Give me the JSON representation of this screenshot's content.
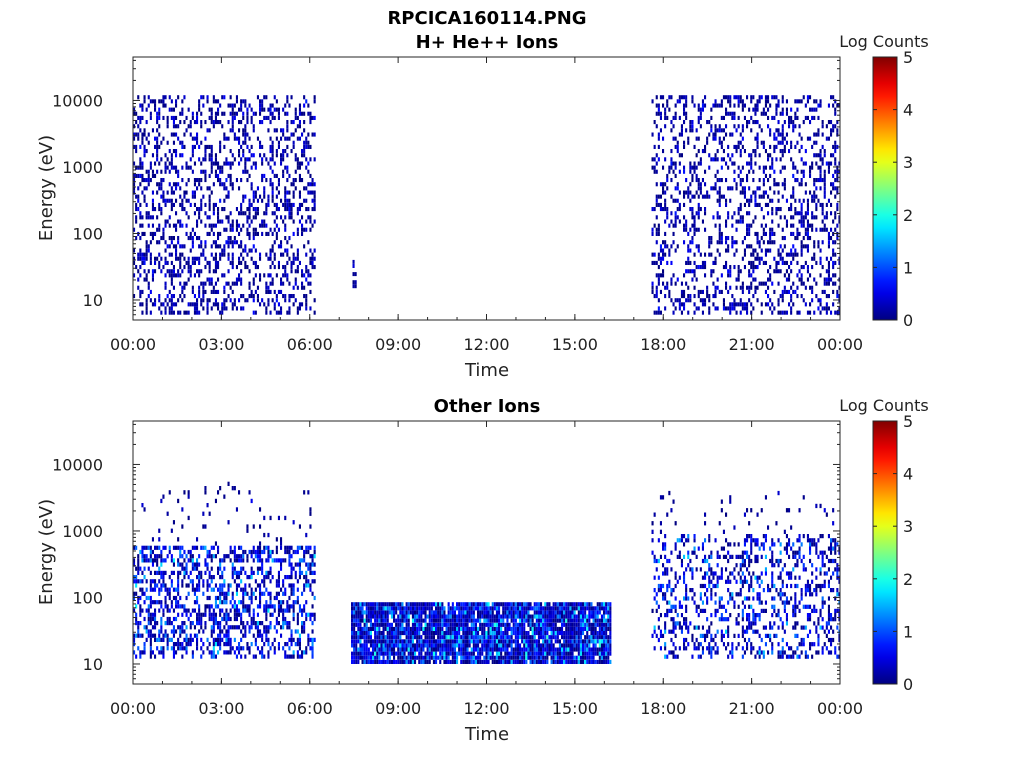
{
  "figure": {
    "title": "RPCICA160114.PNG"
  },
  "colors": {
    "low": "#00008f",
    "cyan": "#00dfff",
    "yellow": "#ffff00",
    "high": "#800000"
  },
  "chart_data": [
    {
      "type": "heatmap",
      "title": "H+ He++ Ions",
      "xlabel": "Time",
      "ylabel": "Energy (eV)",
      "x_ticks": [
        "00:00",
        "03:00",
        "06:00",
        "09:00",
        "12:00",
        "15:00",
        "18:00",
        "21:00",
        "00:00"
      ],
      "x_range_hours": [
        0,
        24
      ],
      "y_scale": "log",
      "y_range": [
        5,
        45000
      ],
      "y_ticks": [
        "10",
        "100",
        "1000",
        "10000"
      ],
      "colorbar_label": "Log Counts",
      "colorbar_range": [
        0,
        5
      ],
      "colorbar_ticks": [
        "0",
        "1",
        "2",
        "3",
        "4",
        "5"
      ],
      "activity_blocks": [
        {
          "t_start": 0.0,
          "t_end": 6.2,
          "e_min": 6,
          "e_max": 12000,
          "density": 0.32,
          "log_counts": [
            0,
            0.8
          ]
        },
        {
          "t_start": 7.45,
          "t_end": 7.55,
          "e_min": 15,
          "e_max": 40,
          "density": 0.6,
          "log_counts": [
            0,
            0.6
          ]
        },
        {
          "t_start": 17.6,
          "t_end": 24.0,
          "e_min": 6,
          "e_max": 12000,
          "density": 0.3,
          "log_counts": [
            0,
            0.8
          ]
        }
      ]
    },
    {
      "type": "heatmap",
      "title": "Other Ions",
      "xlabel": "Time",
      "ylabel": "Energy (eV)",
      "x_ticks": [
        "00:00",
        "03:00",
        "06:00",
        "09:00",
        "12:00",
        "15:00",
        "18:00",
        "21:00",
        "00:00"
      ],
      "x_range_hours": [
        0,
        24
      ],
      "y_scale": "log",
      "y_range": [
        5,
        45000
      ],
      "y_ticks": [
        "10",
        "100",
        "1000",
        "10000"
      ],
      "colorbar_label": "Log Counts",
      "colorbar_range": [
        0,
        5
      ],
      "colorbar_ticks": [
        "0",
        "1",
        "2",
        "3",
        "4",
        "5"
      ],
      "activity_blocks": [
        {
          "t_start": 0.0,
          "t_end": 6.2,
          "e_min": 12,
          "e_max": 600,
          "density": 0.45,
          "log_counts": [
            0,
            2.0
          ]
        },
        {
          "t_start": 0.0,
          "t_end": 6.2,
          "e_min": 600,
          "e_max": 5500,
          "density": 0.06,
          "log_counts": [
            0,
            0.6
          ]
        },
        {
          "t_start": 7.4,
          "t_end": 16.2,
          "e_min": 10,
          "e_max": 85,
          "density": 0.92,
          "log_counts": [
            0,
            2.2
          ]
        },
        {
          "t_start": 17.6,
          "t_end": 24.0,
          "e_min": 12,
          "e_max": 900,
          "density": 0.32,
          "log_counts": [
            0,
            1.8
          ]
        },
        {
          "t_start": 17.6,
          "t_end": 24.0,
          "e_min": 900,
          "e_max": 4000,
          "density": 0.05,
          "log_counts": [
            0,
            0.6
          ]
        }
      ]
    }
  ]
}
